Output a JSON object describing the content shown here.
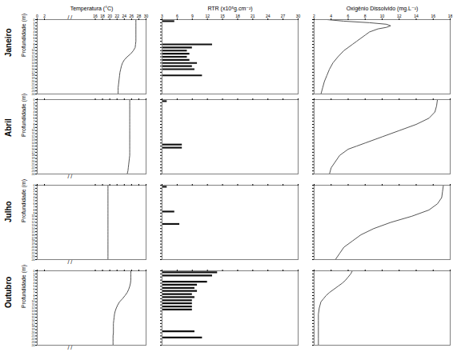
{
  "chart_data": [
    {
      "type": "line",
      "title": "Temperatura (°C)",
      "ylabel": "Profundidade (m)",
      "annotations": [
        {
          "text": "Janeiro"
        },
        {
          "text": "/ /",
          "x": 9
        }
      ],
      "x": [
        27.2,
        27.2,
        27.2,
        27.2,
        27.2,
        27.2,
        27.2,
        27.2,
        27.1,
        27.0,
        26.5,
        25.8,
        24.8,
        24.0,
        23.5,
        23.2,
        23.0,
        22.8,
        22.7,
        22.6,
        22.5,
        22.4,
        22.3,
        22.3,
        22.3
      ],
      "y": [
        0,
        1,
        2,
        3,
        4,
        5,
        6,
        7,
        8,
        9,
        10,
        11,
        12,
        13,
        14,
        15,
        16,
        17,
        18,
        19,
        20,
        21,
        22,
        23,
        24
      ],
      "color": "#555555",
      "xlim": [
        0,
        30
      ],
      "xticks": [
        0,
        2,
        16,
        18,
        20,
        22,
        24,
        26,
        28,
        30
      ],
      "ylim": [
        24,
        0
      ],
      "yticks": [
        0,
        1,
        2,
        3,
        4,
        5,
        6,
        7,
        8,
        9,
        10,
        11,
        12,
        13,
        14,
        15,
        16,
        17,
        18,
        19,
        20,
        21,
        22,
        23,
        24
      ]
    },
    {
      "type": "bar",
      "orientation": "horizontal",
      "title": "RTR (x10⁵g.cm⁻²)",
      "y": [
        0.5,
        8.0,
        9.0,
        10.0,
        11.0,
        12.0,
        13.0,
        14.0,
        15.0,
        16.0,
        18.0
      ],
      "values": [
        5.5,
        13,
        9,
        8,
        8.5,
        8,
        8.5,
        10,
        9,
        9.5,
        11
      ],
      "color": "#111111",
      "xlim": [
        3,
        30
      ],
      "xticks": [
        3,
        6,
        9,
        12,
        15,
        18,
        21,
        24,
        27,
        30
      ],
      "ylim": [
        24,
        0
      ],
      "yticks": [
        0,
        1,
        2,
        3,
        4,
        5,
        6,
        7,
        8,
        9,
        10,
        11,
        12,
        13,
        14,
        15,
        16,
        17,
        18,
        19,
        20,
        21,
        22,
        23,
        24
      ],
      "tick_labels": "x"
    },
    {
      "type": "line",
      "title": "Oxigênio Dissolvido (mg.L⁻¹)",
      "x": [
        3.5,
        5.5,
        8.5,
        10.5,
        11.0,
        10.5,
        9.5,
        8.5,
        8.0,
        7.5,
        7.0,
        6.5,
        6.0,
        5.5,
        4.8,
        4.2,
        3.8,
        3.5,
        3.2,
        3.0,
        2.8
      ],
      "y": [
        0,
        0.5,
        1.0,
        1.5,
        2.0,
        2.5,
        3.0,
        4.0,
        5.0,
        6.0,
        7.0,
        8.0,
        9.0,
        10.0,
        12.0,
        14.0,
        16.0,
        18.0,
        20.0,
        22.0,
        24.0
      ],
      "color": "#555555",
      "xlim": [
        2,
        18
      ],
      "xticks": [
        2,
        4,
        6,
        8,
        10,
        12,
        14,
        16,
        18
      ],
      "ylim": [
        24,
        0
      ],
      "yticks": [
        0,
        1,
        2,
        3,
        4,
        5,
        6,
        7,
        8,
        9,
        10,
        11,
        12,
        13,
        14,
        15,
        16,
        17,
        18,
        19,
        20,
        21,
        22,
        23,
        24
      ],
      "tick_labels": "x"
    },
    {
      "type": "line",
      "ylabel": "Profundidade (m)",
      "annotations": [
        {
          "text": "Abril"
        },
        {
          "text": "/ /",
          "x": 9
        }
      ],
      "x": [
        25.5,
        25.5,
        25.5,
        25.5,
        25.5,
        25.5,
        25.5,
        25.5,
        25.5,
        25.5,
        25.5,
        25.5,
        25.5,
        25.5,
        25.5,
        25.5,
        25.5,
        25.5,
        25.5,
        25.4,
        25.3,
        25.2,
        25.1,
        25.0,
        24.8
      ],
      "y": [
        0,
        1,
        2,
        3,
        4,
        5,
        6,
        7,
        8,
        9,
        10,
        11,
        12,
        13,
        14,
        15,
        16,
        17,
        18,
        19,
        20,
        21,
        22,
        23,
        24
      ],
      "color": "#555555",
      "xlim": [
        0,
        30
      ],
      "xticks": [
        0,
        2,
        16,
        18,
        20,
        22,
        24,
        26,
        28,
        30
      ],
      "ylim": [
        24,
        0
      ],
      "yticks": [
        0,
        1,
        2,
        3,
        4,
        5,
        6,
        7,
        8,
        9,
        10,
        11,
        12,
        13,
        14,
        15,
        16,
        17,
        18,
        19,
        20,
        21,
        22,
        23,
        24
      ],
      "tick_labels": "y"
    },
    {
      "type": "bar",
      "orientation": "horizontal",
      "y": [
        0.5,
        14.5,
        15.5
      ],
      "values": [
        4.0,
        7,
        7
      ],
      "color": "#111111",
      "xlim": [
        3,
        30
      ],
      "xticks": [
        3,
        6,
        9,
        12,
        15,
        18,
        21,
        24,
        27,
        30
      ],
      "ylim": [
        24,
        0
      ],
      "yticks": [
        0,
        1,
        2,
        3,
        4,
        5,
        6,
        7,
        8,
        9,
        10,
        11,
        12,
        13,
        14,
        15,
        16,
        17,
        18,
        19,
        20,
        21,
        22,
        23,
        24
      ],
      "tick_labels": false
    },
    {
      "type": "line",
      "x": [
        16.5,
        16.4,
        16.2,
        15.5,
        14.0,
        12.0,
        10.0,
        8.0,
        7.0,
        6.0,
        5.0,
        4.5,
        4.0,
        3.8
      ],
      "y": [
        0,
        2,
        4,
        6,
        8,
        10,
        12,
        14,
        15,
        16,
        18,
        20,
        22,
        24
      ],
      "color": "#555555",
      "xlim": [
        2,
        18
      ],
      "xticks": [
        2,
        4,
        6,
        8,
        10,
        12,
        14,
        16,
        18
      ],
      "ylim": [
        24,
        0
      ],
      "yticks": [
        0,
        1,
        2,
        3,
        4,
        5,
        6,
        7,
        8,
        9,
        10,
        11,
        12,
        13,
        14,
        15,
        16,
        17,
        18,
        19,
        20,
        21,
        22,
        23,
        24
      ],
      "tick_labels": false
    },
    {
      "type": "line",
      "ylabel": "Profundidade (m)",
      "annotations": [
        {
          "text": "Julho"
        },
        {
          "text": "/ /",
          "x": 9
        }
      ],
      "x": [
        19.5,
        19.5,
        19.5,
        19.5,
        19.5,
        19.5,
        19.5,
        19.5,
        19.5,
        19.5,
        19.5,
        19.5,
        19.5,
        19.5,
        19.5,
        19.5,
        19.5,
        19.5,
        19.5,
        19.5,
        19.5,
        19.5,
        19.5,
        19.5,
        19.5
      ],
      "y": [
        0,
        1,
        2,
        3,
        4,
        5,
        6,
        7,
        8,
        9,
        10,
        11,
        12,
        13,
        14,
        15,
        16,
        17,
        18,
        19,
        20,
        21,
        22,
        23,
        24
      ],
      "color": "#555555",
      "xlim": [
        0,
        30
      ],
      "xticks": [
        0,
        2,
        16,
        18,
        20,
        22,
        24,
        26,
        28,
        30
      ],
      "ylim": [
        24,
        0
      ],
      "yticks": [
        0,
        1,
        2,
        3,
        4,
        5,
        6,
        7,
        8,
        9,
        10,
        11,
        12,
        13,
        14,
        15,
        16,
        17,
        18,
        19,
        20,
        21,
        22,
        23,
        24
      ],
      "tick_labels": "y"
    },
    {
      "type": "bar",
      "orientation": "horizontal",
      "y": [
        0.5,
        8.5,
        12.5
      ],
      "values": [
        4.0,
        5.5,
        6.5
      ],
      "color": "#111111",
      "xlim": [
        3,
        30
      ],
      "xticks": [
        3,
        6,
        9,
        12,
        15,
        18,
        21,
        24,
        27,
        30
      ],
      "ylim": [
        24,
        0
      ],
      "yticks": [
        0,
        1,
        2,
        3,
        4,
        5,
        6,
        7,
        8,
        9,
        10,
        11,
        12,
        13,
        14,
        15,
        16,
        17,
        18,
        19,
        20,
        21,
        22,
        23,
        24
      ],
      "tick_labels": false
    },
    {
      "type": "line",
      "x": [
        17.2,
        17.1,
        17.0,
        16.5,
        15.5,
        13.5,
        11.0,
        9.0,
        7.5,
        6.5,
        5.5,
        5.0,
        4.5
      ],
      "y": [
        0,
        2,
        4,
        6,
        8,
        10,
        12,
        14,
        16,
        18,
        20,
        22,
        24
      ],
      "color": "#555555",
      "xlim": [
        2,
        18
      ],
      "xticks": [
        2,
        4,
        6,
        8,
        10,
        12,
        14,
        16,
        18
      ],
      "ylim": [
        24,
        0
      ],
      "yticks": [
        0,
        1,
        2,
        3,
        4,
        5,
        6,
        7,
        8,
        9,
        10,
        11,
        12,
        13,
        14,
        15,
        16,
        17,
        18,
        19,
        20,
        21,
        22,
        23,
        24
      ],
      "tick_labels": false
    },
    {
      "type": "line",
      "ylabel": "Profundidade (m)",
      "annotations": [
        {
          "text": "Outubro"
        },
        {
          "text": "/ /",
          "x": 9
        }
      ],
      "x": [
        25.8,
        25.8,
        25.8,
        25.8,
        25.7,
        25.5,
        25.2,
        24.8,
        24.2,
        23.5,
        22.7,
        22.2,
        21.8,
        21.5,
        21.3,
        21.2,
        21.1,
        21.0,
        21.0,
        21.0,
        21.0,
        20.9,
        20.9,
        20.9,
        20.9
      ],
      "y": [
        0,
        1,
        2,
        3,
        4,
        5,
        6,
        7,
        8,
        9,
        10,
        11,
        12,
        13,
        14,
        15,
        16,
        17,
        18,
        19,
        20,
        21,
        22,
        23,
        24
      ],
      "color": "#555555",
      "xlim": [
        0,
        30
      ],
      "xticks": [
        0,
        2,
        16,
        18,
        20,
        22,
        24,
        26,
        28,
        30
      ],
      "ylim": [
        24,
        0
      ],
      "yticks": [
        0,
        1,
        2,
        3,
        4,
        5,
        6,
        7,
        8,
        9,
        10,
        11,
        12,
        13,
        14,
        15,
        16,
        17,
        18,
        19,
        20,
        21,
        22,
        23,
        24
      ],
      "tick_labels": "y"
    },
    {
      "type": "bar",
      "orientation": "horizontal",
      "y": [
        0.5,
        1.5,
        3.5,
        4.5,
        5.5,
        6.5,
        7.5,
        8.5,
        9.5,
        10.5,
        11.5,
        12.5,
        19.5,
        21.5
      ],
      "values": [
        14,
        13,
        12,
        10,
        9.5,
        10,
        9,
        9.5,
        9,
        9,
        9,
        9,
        9.5,
        11
      ],
      "color": "#111111",
      "xlim": [
        3,
        30
      ],
      "xticks": [
        3,
        6,
        9,
        12,
        15,
        18,
        21,
        24,
        27,
        30
      ],
      "ylim": [
        24,
        0
      ],
      "yticks": [
        0,
        1,
        2,
        3,
        4,
        5,
        6,
        7,
        8,
        9,
        10,
        11,
        12,
        13,
        14,
        15,
        16,
        17,
        18,
        19,
        20,
        21,
        22,
        23,
        24
      ],
      "tick_labels": false
    },
    {
      "type": "line",
      "x": [
        6.5,
        6.3,
        6.0,
        5.7,
        5.3,
        4.8,
        4.3,
        3.8,
        3.4,
        3.1,
        2.8,
        2.7,
        2.6,
        2.5,
        2.5,
        2.5,
        2.5,
        2.5,
        2.5
      ],
      "y": [
        0,
        1,
        2,
        3,
        4,
        5,
        6,
        7,
        8,
        9,
        10,
        11,
        12,
        14,
        16,
        18,
        20,
        22,
        24
      ],
      "color": "#555555",
      "xlim": [
        2,
        18
      ],
      "xticks": [
        2,
        4,
        6,
        8,
        10,
        12,
        14,
        16,
        18
      ],
      "ylim": [
        24,
        0
      ],
      "yticks": [
        0,
        1,
        2,
        3,
        4,
        5,
        6,
        7,
        8,
        9,
        10,
        11,
        12,
        13,
        14,
        15,
        16,
        17,
        18,
        19,
        20,
        21,
        22,
        23,
        24
      ],
      "tick_labels": false
    }
  ]
}
